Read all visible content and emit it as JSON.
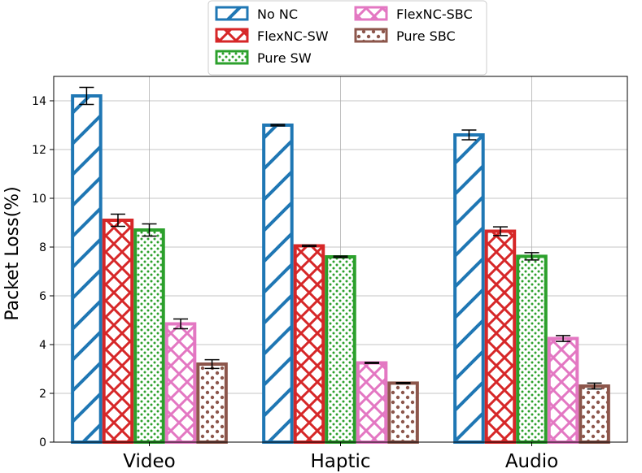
{
  "chart_data": {
    "type": "bar",
    "title": "",
    "xlabel": "",
    "ylabel": "Packet Loss(%)",
    "ylim": [
      0,
      15
    ],
    "yticks": [
      0,
      2,
      4,
      6,
      8,
      10,
      12,
      14
    ],
    "categories": [
      "Video",
      "Haptic",
      "Audio"
    ],
    "grid": true,
    "legend_placement": "top-center",
    "series": [
      {
        "name": "No NC",
        "values": [
          14.2,
          13.0,
          12.6
        ],
        "errors": [
          0.35,
          0.03,
          0.2
        ],
        "color": "#1f77b4",
        "pattern": "diagonal"
      },
      {
        "name": "FlexNC-SW",
        "values": [
          9.1,
          8.05,
          8.65
        ],
        "errors": [
          0.25,
          0.03,
          0.18
        ],
        "color": "#d62728",
        "pattern": "crosshatch"
      },
      {
        "name": "Pure SW",
        "values": [
          8.7,
          7.6,
          7.62
        ],
        "errors": [
          0.25,
          0.03,
          0.15
        ],
        "color": "#2ca02c",
        "pattern": "dots"
      },
      {
        "name": "FlexNC-SBC",
        "values": [
          4.85,
          3.25,
          4.25
        ],
        "errors": [
          0.2,
          0.02,
          0.12
        ],
        "color": "#e377c2",
        "pattern": "crosshatch"
      },
      {
        "name": "Pure SBC",
        "values": [
          3.2,
          2.42,
          2.3
        ],
        "errors": [
          0.18,
          0.02,
          0.12
        ],
        "color": "#8c564b",
        "pattern": "circles"
      }
    ]
  }
}
